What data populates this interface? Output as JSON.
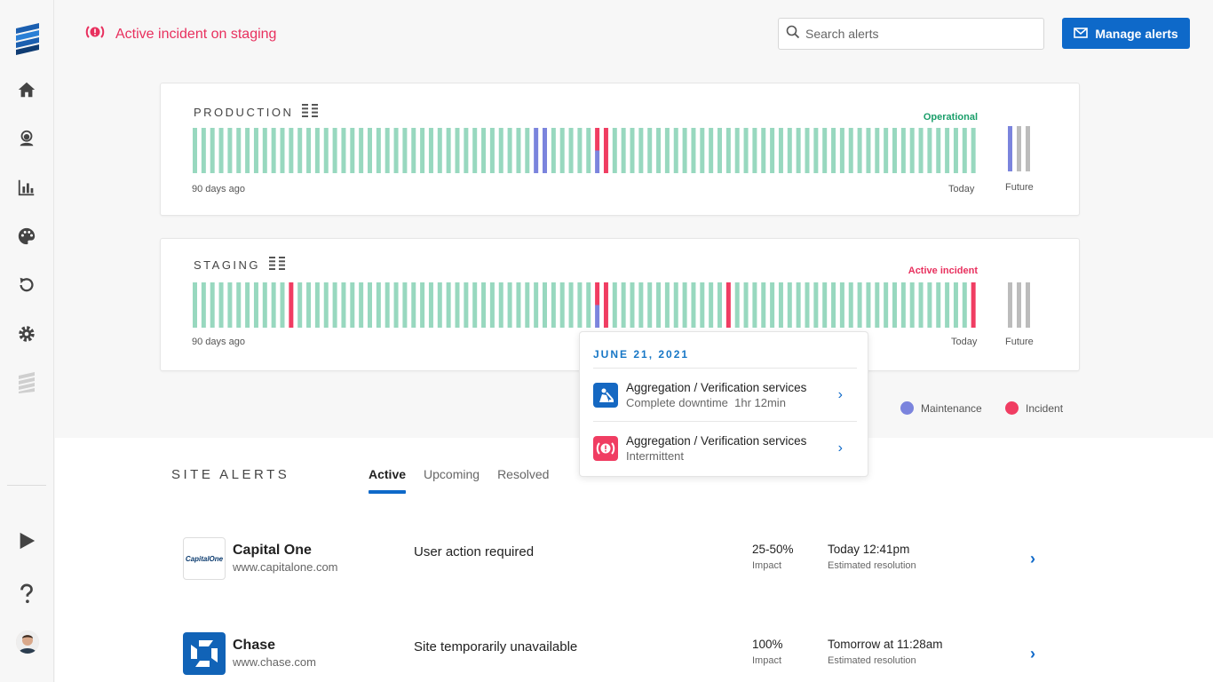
{
  "header": {
    "alert_text": "Active incident on staging",
    "search_placeholder": "Search alerts",
    "manage_label": "Manage alerts"
  },
  "environments": [
    {
      "title": "PRODUCTION",
      "status": "Operational",
      "status_color": "#1a9e6a",
      "start_label": "90 days ago",
      "end_label": "Today",
      "future_label": "Future",
      "days": [
        "op",
        "op",
        "op",
        "op",
        "op",
        "op",
        "op",
        "op",
        "op",
        "op",
        "op",
        "op",
        "op",
        "op",
        "op",
        "op",
        "op",
        "op",
        "op",
        "op",
        "op",
        "op",
        "op",
        "op",
        "op",
        "op",
        "op",
        "op",
        "op",
        "op",
        "op",
        "op",
        "op",
        "op",
        "op",
        "op",
        "op",
        "op",
        "op",
        "maint",
        "maint",
        "op",
        "op",
        "op",
        "op",
        "op",
        "mixed",
        "inc",
        "op",
        "op",
        "op",
        "op",
        "op",
        "op",
        "op",
        "op",
        "op",
        "op",
        "op",
        "op",
        "op",
        "op",
        "op",
        "op",
        "op",
        "op",
        "op",
        "op",
        "op",
        "op",
        "op",
        "op",
        "op",
        "op",
        "op",
        "op",
        "op",
        "op",
        "op",
        "op",
        "op",
        "op",
        "op",
        "op",
        "op",
        "op",
        "op",
        "op",
        "op",
        "op"
      ],
      "future": [
        "maint",
        "none",
        "none"
      ]
    },
    {
      "title": "STAGING",
      "status": "Active incident",
      "status_color": "#e8305e",
      "start_label": "90 days ago",
      "end_label": "Today",
      "future_label": "Future",
      "days": [
        "op",
        "op",
        "op",
        "op",
        "op",
        "op",
        "op",
        "op",
        "op",
        "op",
        "op",
        "inc",
        "op",
        "op",
        "op",
        "op",
        "op",
        "op",
        "op",
        "op",
        "op",
        "op",
        "op",
        "op",
        "op",
        "op",
        "op",
        "op",
        "op",
        "op",
        "op",
        "op",
        "op",
        "op",
        "op",
        "op",
        "op",
        "op",
        "op",
        "op",
        "op",
        "op",
        "op",
        "op",
        "op",
        "op",
        "mixed",
        "inc",
        "op",
        "op",
        "op",
        "op",
        "op",
        "op",
        "op",
        "op",
        "op",
        "op",
        "op",
        "op",
        "op",
        "inc",
        "op",
        "op",
        "op",
        "op",
        "op",
        "op",
        "op",
        "op",
        "op",
        "op",
        "op",
        "op",
        "op",
        "op",
        "op",
        "op",
        "op",
        "op",
        "op",
        "op",
        "op",
        "op",
        "op",
        "op",
        "op",
        "op",
        "op",
        "inc"
      ],
      "future": [
        "none",
        "none",
        "none"
      ]
    }
  ],
  "colors": {
    "operational": "#98d8bf",
    "maintenance": "#7b84dd",
    "incident": "#f03d62",
    "future": "#bcbcbc",
    "accent": "#0e69c9"
  },
  "legend": {
    "maintenance": "Maintenance",
    "incident": "Incident"
  },
  "popover": {
    "date": "JUNE 21, 2021",
    "items": [
      {
        "title": "Aggregation / Verification services",
        "detail": "Complete downtime  1hr 12min",
        "icon": "construction-worker-icon"
      },
      {
        "title": "Aggregation / Verification services",
        "detail": "Intermittent",
        "icon": "alert-icon"
      }
    ]
  },
  "site_alerts": {
    "title": "SITE ALERTS",
    "tabs": [
      "Active",
      "Upcoming",
      "Resolved"
    ],
    "rows": [
      {
        "name": "Capital One",
        "url": "www.capitalone.com",
        "message": "User action required",
        "impact": "25-50%",
        "impact_label": "Impact",
        "resolution": "Today 12:41pm",
        "resolution_label": "Estimated resolution",
        "logo_text": "CapitalOne"
      },
      {
        "name": "Chase",
        "url": "www.chase.com",
        "message": "Site temporarily unavailable",
        "impact": "100%",
        "impact_label": "Impact",
        "resolution": "Tomorrow at 11:28am",
        "resolution_label": "Estimated resolution"
      }
    ]
  }
}
